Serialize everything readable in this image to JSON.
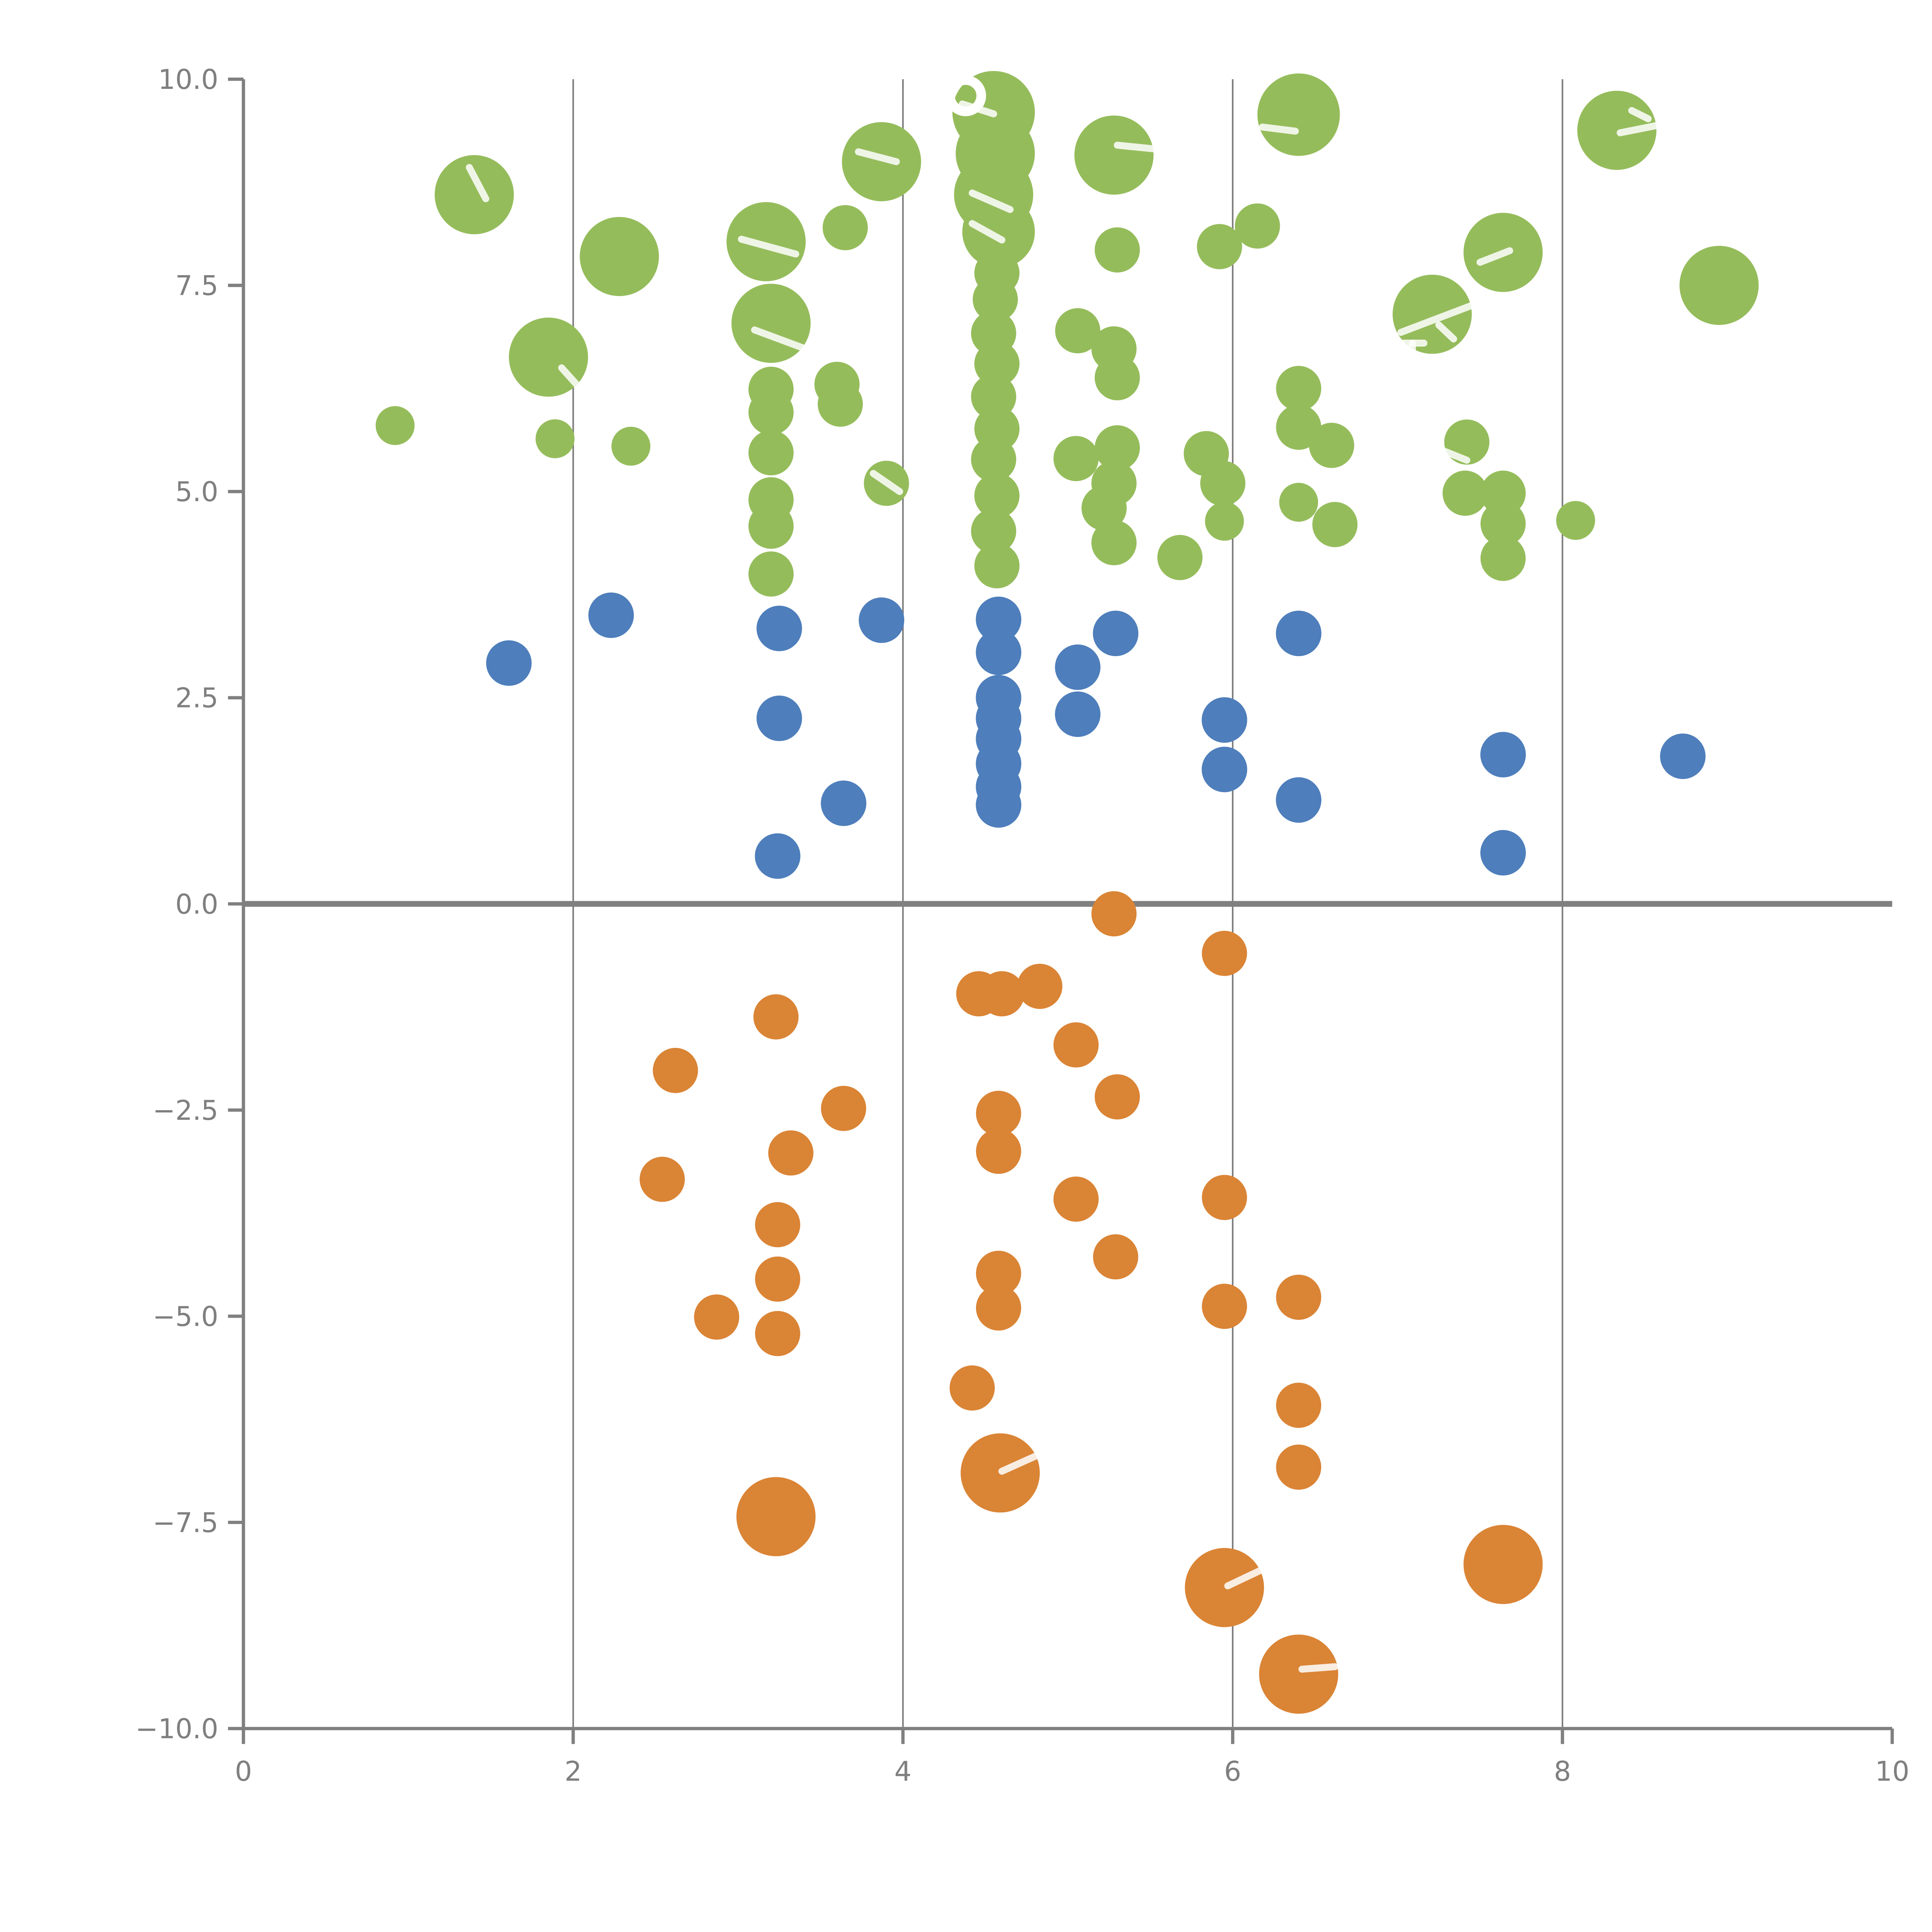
{
  "chart_data": {
    "type": "scatter",
    "title": "",
    "xlabel": "",
    "ylabel": "",
    "xlim": [
      0,
      10
    ],
    "ylim": [
      -10,
      10
    ],
    "grid": "vertical-only",
    "legend": "none",
    "x_ticks": [
      {
        "v": 0,
        "label": "0"
      },
      {
        "v": 2,
        "label": "2"
      },
      {
        "v": 4,
        "label": "4"
      },
      {
        "v": 6,
        "label": "6"
      },
      {
        "v": 8,
        "label": "8"
      },
      {
        "v": 10,
        "label": "10"
      }
    ],
    "y_ticks": [
      {
        "v": 10,
        "label": "10.0"
      },
      {
        "v": 7.5,
        "label": "7.5"
      },
      {
        "v": 5,
        "label": "5.0"
      },
      {
        "v": 2.5,
        "label": "2.5"
      },
      {
        "v": 0,
        "label": "0.0"
      },
      {
        "v": -2.5,
        "label": "−2.5"
      },
      {
        "v": -5,
        "label": "−5.0"
      },
      {
        "v": -7.5,
        "label": "−7.5"
      },
      {
        "v": -10,
        "label": "−10.0"
      }
    ],
    "grid_x": [
      2,
      4,
      6,
      8
    ],
    "zero_line_y": 0,
    "colors": {
      "green": "#95BC5B",
      "blue": "#4E7EBB",
      "orange": "#DA8435",
      "axis": "#808080",
      "grid": "#5a5a5a",
      "zero_line": "#808080",
      "tick_label": "#7f7f7f",
      "streak": "#ffffff"
    },
    "series": [
      {
        "name": "green",
        "color_key": "green",
        "points": [
          [
            1.4,
            8.6,
            0.24
          ],
          [
            2.28,
            7.85,
            0.24
          ],
          [
            1.85,
            6.63,
            0.24
          ],
          [
            0.92,
            5.8,
            0.118
          ],
          [
            1.89,
            5.64,
            0.118
          ],
          [
            2.35,
            5.55,
            0.118
          ],
          [
            3.17,
            8.03,
            0.24
          ],
          [
            3.2,
            7.04,
            0.24
          ],
          [
            3.2,
            6.24,
            0.137
          ],
          [
            3.2,
            5.96,
            0.137
          ],
          [
            3.2,
            5.47,
            0.137
          ],
          [
            3.2,
            4.9,
            0.137
          ],
          [
            3.2,
            4.58,
            0.137
          ],
          [
            3.2,
            4.0,
            0.137
          ],
          [
            3.65,
            8.2,
            0.137
          ],
          [
            3.6,
            6.3,
            0.137
          ],
          [
            3.62,
            6.06,
            0.137
          ],
          [
            3.9,
            5.1,
            0.137
          ],
          [
            3.87,
            9.0,
            0.24
          ],
          [
            4.55,
            9.6,
            0.25
          ],
          [
            4.56,
            9.1,
            0.24
          ],
          [
            4.55,
            8.6,
            0.24
          ],
          [
            4.58,
            8.15,
            0.22
          ],
          [
            4.57,
            7.65,
            0.137
          ],
          [
            4.56,
            7.33,
            0.137
          ],
          [
            4.55,
            6.92,
            0.137
          ],
          [
            4.57,
            6.55,
            0.137
          ],
          [
            4.55,
            6.15,
            0.137
          ],
          [
            4.57,
            5.76,
            0.137
          ],
          [
            4.55,
            5.39,
            0.137
          ],
          [
            4.57,
            4.95,
            0.137
          ],
          [
            4.55,
            4.52,
            0.137
          ],
          [
            4.57,
            4.1,
            0.137
          ],
          [
            5.28,
            9.08,
            0.24
          ],
          [
            5.3,
            7.93,
            0.137
          ],
          [
            5.06,
            6.95,
            0.137
          ],
          [
            5.28,
            6.73,
            0.137
          ],
          [
            5.3,
            6.38,
            0.137
          ],
          [
            5.05,
            5.4,
            0.137
          ],
          [
            5.3,
            5.53,
            0.137
          ],
          [
            5.28,
            5.1,
            0.137
          ],
          [
            5.22,
            4.8,
            0.137
          ],
          [
            5.28,
            4.38,
            0.137
          ],
          [
            5.68,
            4.2,
            0.137
          ],
          [
            5.84,
            5.46,
            0.137
          ],
          [
            5.94,
            5.1,
            0.137
          ],
          [
            5.95,
            4.64,
            0.118
          ],
          [
            5.92,
            7.97,
            0.137
          ],
          [
            6.15,
            8.22,
            0.137
          ],
          [
            6.4,
            9.57,
            0.25
          ],
          [
            6.4,
            6.25,
            0.137
          ],
          [
            6.4,
            5.78,
            0.137
          ],
          [
            6.6,
            5.56,
            0.137
          ],
          [
            6.4,
            4.87,
            0.118
          ],
          [
            6.62,
            4.6,
            0.137
          ],
          [
            8.33,
            9.38,
            0.24
          ],
          [
            7.64,
            7.9,
            0.24
          ],
          [
            7.21,
            7.15,
            0.24
          ],
          [
            8.95,
            7.5,
            0.24
          ],
          [
            7.42,
            5.6,
            0.137
          ],
          [
            7.41,
            4.98,
            0.137
          ],
          [
            7.64,
            4.98,
            0.137
          ],
          [
            7.64,
            4.61,
            0.137
          ],
          [
            7.64,
            4.19,
            0.137
          ],
          [
            8.08,
            4.65,
            0.118
          ]
        ]
      },
      {
        "name": "blue",
        "color_key": "blue",
        "points": [
          [
            1.61,
            2.92,
            0.138
          ],
          [
            2.23,
            3.5,
            0.138
          ],
          [
            3.25,
            3.34,
            0.138
          ],
          [
            3.25,
            2.25,
            0.138
          ],
          [
            3.24,
            0.58,
            0.138
          ],
          [
            3.87,
            3.44,
            0.138
          ],
          [
            3.64,
            1.22,
            0.138
          ],
          [
            4.58,
            3.45,
            0.138
          ],
          [
            4.58,
            3.05,
            0.138
          ],
          [
            4.58,
            2.5,
            0.138
          ],
          [
            4.58,
            2.25,
            0.138
          ],
          [
            4.58,
            2.0,
            0.138
          ],
          [
            4.58,
            1.7,
            0.138
          ],
          [
            4.58,
            1.42,
            0.138
          ],
          [
            4.58,
            1.2,
            0.138
          ],
          [
            5.29,
            3.28,
            0.138
          ],
          [
            5.06,
            2.87,
            0.138
          ],
          [
            5.06,
            2.3,
            0.138
          ],
          [
            5.95,
            2.23,
            0.138
          ],
          [
            5.95,
            1.63,
            0.138
          ],
          [
            6.4,
            3.28,
            0.138
          ],
          [
            6.4,
            1.26,
            0.138
          ],
          [
            7.64,
            1.81,
            0.138
          ],
          [
            7.64,
            0.62,
            0.138
          ],
          [
            8.73,
            1.79,
            0.138
          ]
        ]
      },
      {
        "name": "orange",
        "color_key": "orange",
        "points": [
          [
            5.28,
            -0.12,
            0.137
          ],
          [
            5.95,
            -0.6,
            0.137
          ],
          [
            4.46,
            -1.09,
            0.137
          ],
          [
            4.6,
            -1.09,
            0.137
          ],
          [
            4.83,
            -1.0,
            0.137
          ],
          [
            5.05,
            -1.71,
            0.137
          ],
          [
            3.23,
            -1.37,
            0.137
          ],
          [
            2.62,
            -2.02,
            0.137
          ],
          [
            5.3,
            -2.34,
            0.137
          ],
          [
            3.64,
            -2.48,
            0.137
          ],
          [
            4.58,
            -2.54,
            0.137
          ],
          [
            4.58,
            -3.0,
            0.137
          ],
          [
            3.32,
            -3.02,
            0.137
          ],
          [
            2.54,
            -3.34,
            0.137
          ],
          [
            5.05,
            -3.58,
            0.137
          ],
          [
            5.95,
            -3.56,
            0.137
          ],
          [
            5.29,
            -4.28,
            0.137
          ],
          [
            3.24,
            -3.89,
            0.137
          ],
          [
            3.24,
            -4.55,
            0.137
          ],
          [
            2.87,
            -5.01,
            0.137
          ],
          [
            3.24,
            -5.21,
            0.137
          ],
          [
            4.58,
            -4.48,
            0.137
          ],
          [
            4.58,
            -4.9,
            0.137
          ],
          [
            5.95,
            -4.88,
            0.137
          ],
          [
            6.4,
            -4.77,
            0.137
          ],
          [
            4.42,
            -5.87,
            0.137
          ],
          [
            6.4,
            -6.08,
            0.137
          ],
          [
            6.4,
            -6.83,
            0.137
          ],
          [
            4.59,
            -6.9,
            0.24
          ],
          [
            3.23,
            -7.43,
            0.24
          ],
          [
            5.95,
            -8.29,
            0.24
          ],
          [
            6.4,
            -9.34,
            0.24
          ],
          [
            7.64,
            -8.01,
            0.24
          ]
        ]
      }
    ],
    "white_marks": {
      "streaks": [
        [
          1.37,
          8.93,
          1.47,
          8.55
        ],
        [
          1.93,
          6.5,
          2.02,
          6.3
        ],
        [
          3.02,
          8.06,
          3.35,
          7.88
        ],
        [
          3.1,
          6.96,
          3.45,
          6.7
        ],
        [
          3.73,
          9.12,
          3.96,
          9.0
        ],
        [
          3.82,
          5.22,
          3.98,
          5.0
        ],
        [
          4.36,
          9.7,
          4.55,
          9.58
        ],
        [
          4.42,
          8.62,
          4.65,
          8.42
        ],
        [
          4.42,
          8.25,
          4.6,
          8.05
        ],
        [
          5.3,
          9.2,
          5.55,
          9.15
        ],
        [
          6.18,
          9.42,
          6.38,
          9.37
        ],
        [
          7.5,
          7.78,
          7.68,
          7.92
        ],
        [
          7.02,
          6.93,
          7.48,
          7.28
        ],
        [
          7.25,
          7.02,
          7.34,
          6.85
        ],
        [
          7.02,
          6.8,
          7.16,
          6.8
        ],
        [
          7.09,
          6.8,
          7.09,
          6.62
        ],
        [
          7.12,
          5.62,
          7.42,
          5.38
        ],
        [
          8.35,
          9.35,
          8.6,
          9.45
        ],
        [
          8.42,
          9.62,
          8.52,
          9.52
        ],
        [
          4.6,
          -6.88,
          4.8,
          -6.7
        ],
        [
          5.97,
          -8.27,
          6.17,
          -8.08
        ],
        [
          6.42,
          -9.28,
          6.62,
          -9.25
        ]
      ],
      "rings": [
        [
          4.38,
          9.8,
          0.095
        ]
      ]
    }
  }
}
